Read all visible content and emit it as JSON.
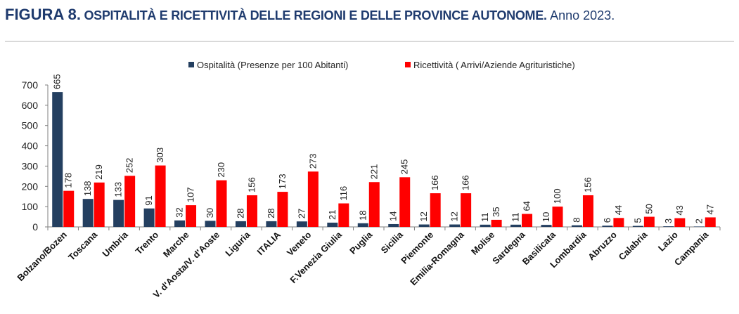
{
  "title": {
    "figure": "FIGURA 8.",
    "main": "OSPITALITÀ E RICETTIVITÀ DELLE REGIONI E DELLE PROVINCE AUTONOME.",
    "year": "Anno 2023."
  },
  "colors": {
    "series1": "#243f60",
    "series2": "#ff0000",
    "title": "#1f3b6e"
  },
  "chart_data": {
    "type": "bar",
    "categories": [
      "Bolzano/Bozen",
      "Toscana",
      "Umbria",
      "Trento",
      "Marche",
      "V. d'Aosta/V. d'Aoste",
      "Liguria",
      "ITALIA",
      "Veneto",
      "F.Venezia Giulia",
      "Puglia",
      "Sicilia",
      "Piemonte",
      "Emilia-Romagna",
      "Molise",
      "Sardegna",
      "Basilicata",
      "Lombardia",
      "Abruzzo",
      "Calabria",
      "Lazio",
      "Campania"
    ],
    "series": [
      {
        "name": "Ospitalità (Presenze per 100 Abitanti)",
        "color": "#243f60",
        "values": [
          665,
          138,
          133,
          91,
          32,
          30,
          28,
          28,
          27,
          21,
          18,
          14,
          12,
          12,
          11,
          11,
          10,
          8,
          6,
          5,
          3,
          2
        ]
      },
      {
        "name": "Ricettività ( Arrivi/Aziende Agrituristiche)",
        "color": "#ff0000",
        "values": [
          178,
          219,
          252,
          303,
          107,
          230,
          156,
          173,
          273,
          116,
          221,
          245,
          166,
          166,
          35,
          64,
          100,
          156,
          44,
          50,
          43,
          47
        ]
      }
    ],
    "yticks": [
      0,
      100,
      200,
      300,
      400,
      500,
      600,
      700
    ],
    "ylim": [
      0,
      700
    ],
    "legend": "top",
    "grid": false
  }
}
